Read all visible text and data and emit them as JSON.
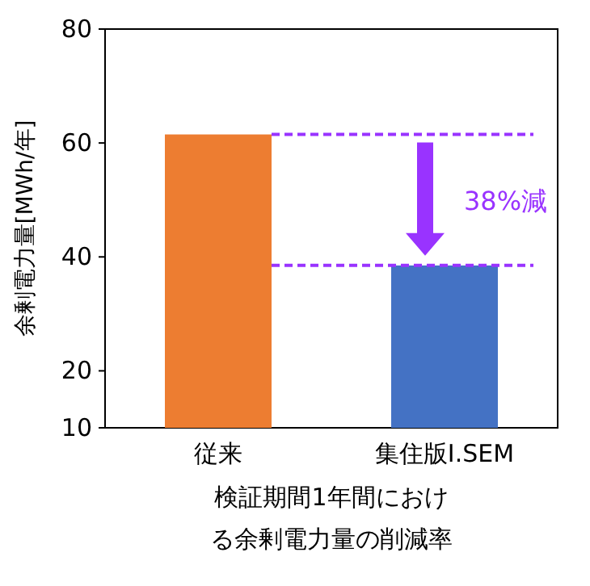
{
  "chart_data": {
    "type": "bar",
    "categories": [
      "従来",
      "集住版I.SEM"
    ],
    "values": [
      61.5,
      38.5
    ],
    "colors": [
      "#ed7d31",
      "#4472c4"
    ],
    "ylabel": "余剰電力量[MWh/年]",
    "title": "検証期間1年間における余剰電力量の削減率",
    "ylim": [
      10,
      80
    ],
    "yticks": [
      10,
      20,
      40,
      60,
      80
    ],
    "ref_lines": [
      {
        "axis": "y",
        "value": 61.5,
        "color": "#9933ff",
        "line_style": "dashed"
      },
      {
        "axis": "y",
        "value": 38.5,
        "color": "#9933ff",
        "line_style": "dashed"
      }
    ],
    "annotations": [
      "38%減"
    ],
    "grid": false
  }
}
